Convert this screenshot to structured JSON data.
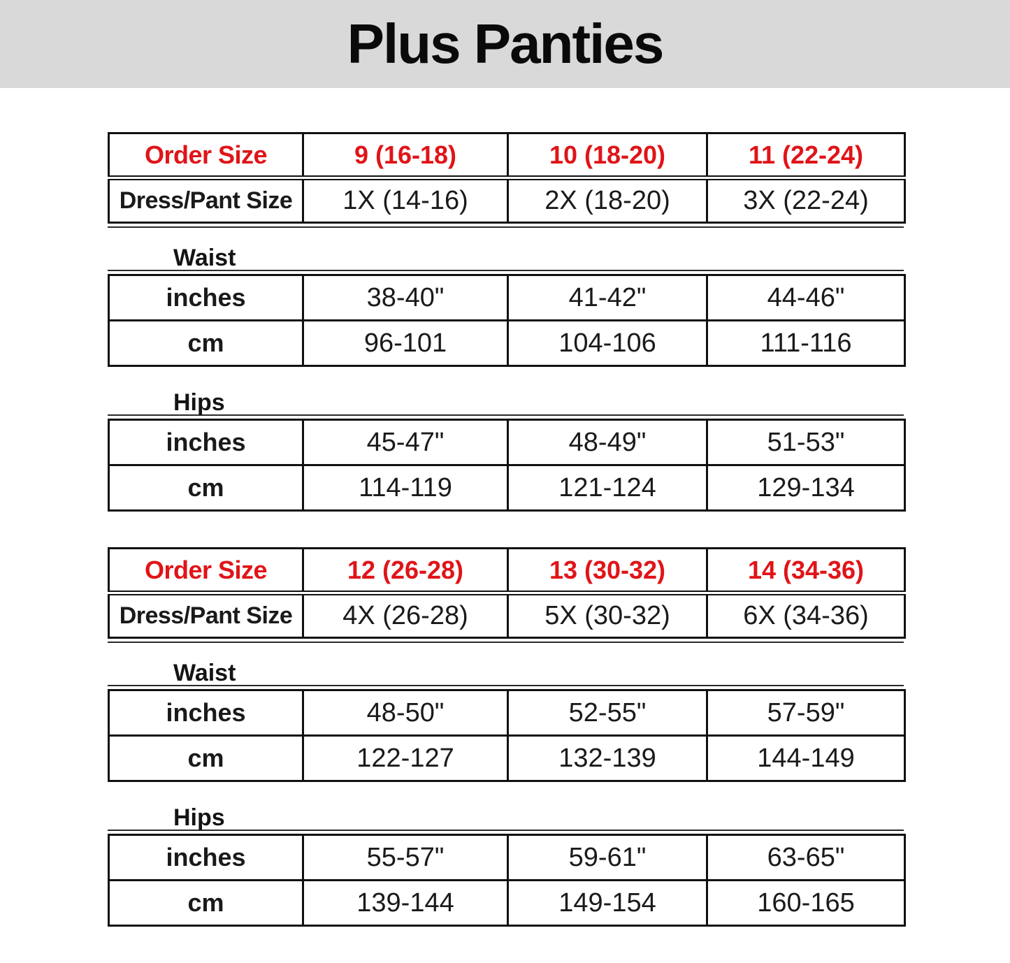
{
  "title": "Plus Panties",
  "colors": {
    "banner_bg": "#d9d9d9",
    "accent_red": "#e01418",
    "text_black": "#1a1a1a",
    "border_black": "#111111"
  },
  "group1": {
    "order": {
      "head": [
        "Order Size",
        "9 (16-18)",
        "10 (18-20)",
        "11 (22-24)"
      ],
      "dress": [
        "Dress/Pant Size",
        "1X (14-16)",
        "2X (18-20)",
        "3X (22-24)"
      ]
    },
    "waist": {
      "label": "Waist",
      "inches": [
        "inches",
        "38-40\"",
        "41-42\"",
        "44-46\""
      ],
      "cm": [
        "cm",
        "96-101",
        "104-106",
        "111-116"
      ]
    },
    "hips": {
      "label": "Hips",
      "inches": [
        "inches",
        "45-47\"",
        "48-49\"",
        "51-53\""
      ],
      "cm": [
        "cm",
        "114-119",
        "121-124",
        "129-134"
      ]
    }
  },
  "group2": {
    "order": {
      "head": [
        "Order Size",
        "12 (26-28)",
        "13 (30-32)",
        "14 (34-36)"
      ],
      "dress": [
        "Dress/Pant Size",
        "4X (26-28)",
        "5X (30-32)",
        "6X (34-36)"
      ]
    },
    "waist": {
      "label": "Waist",
      "inches": [
        "inches",
        "48-50\"",
        "52-55\"",
        "57-59\""
      ],
      "cm": [
        "cm",
        "122-127",
        "132-139",
        "144-149"
      ]
    },
    "hips": {
      "label": "Hips",
      "inches": [
        "inches",
        "55-57\"",
        "59-61\"",
        "63-65\""
      ],
      "cm": [
        "cm",
        "139-144",
        "149-154",
        "160-165"
      ]
    }
  }
}
